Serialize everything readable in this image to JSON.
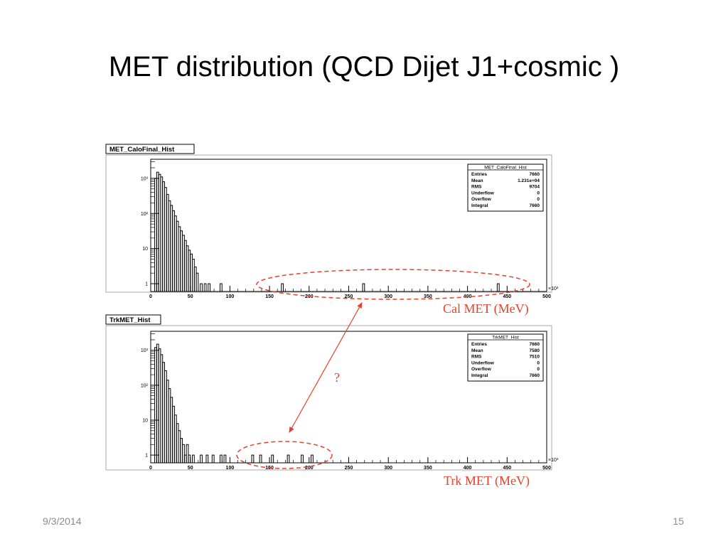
{
  "slide": {
    "title": "MET distribution (QCD Dijet J1+cosmic )",
    "date": "9/3/2014",
    "page_number": "15"
  },
  "annotations": {
    "question_mark": "?",
    "colors": {
      "annotation": "#e8402a",
      "hist": "#000000",
      "frame": "#000000"
    }
  },
  "chart_data": [
    {
      "type": "bar",
      "name_tab": "MET_CaloFinal_Hist",
      "xlabel": "Cal MET (MeV)",
      "x_exponent": "×10³",
      "log_y": true,
      "xlim": [
        0,
        500
      ],
      "ylim": [
        0.6,
        3500
      ],
      "x_ticks": [
        "0",
        "50",
        "100",
        "150",
        "200",
        "250",
        "300",
        "350",
        "400",
        "450",
        "500"
      ],
      "y_ticks": [
        {
          "value": 1,
          "label": "1"
        },
        {
          "value": 10,
          "label": "10"
        },
        {
          "value": 100,
          "label": "10²"
        },
        {
          "value": 1000,
          "label": "10³"
        }
      ],
      "bin_width": 2.5,
      "bins": [
        {
          "x": 5,
          "y": 1000
        },
        {
          "x": 7.5,
          "y": 1500
        },
        {
          "x": 10,
          "y": 1300
        },
        {
          "x": 12.5,
          "y": 1100
        },
        {
          "x": 15,
          "y": 800
        },
        {
          "x": 17.5,
          "y": 550
        },
        {
          "x": 20,
          "y": 350
        },
        {
          "x": 22.5,
          "y": 230
        },
        {
          "x": 25,
          "y": 170
        },
        {
          "x": 27.5,
          "y": 120
        },
        {
          "x": 30,
          "y": 85
        },
        {
          "x": 32.5,
          "y": 60
        },
        {
          "x": 35,
          "y": 42
        },
        {
          "x": 37.5,
          "y": 32
        },
        {
          "x": 40,
          "y": 24
        },
        {
          "x": 42.5,
          "y": 17
        },
        {
          "x": 45,
          "y": 12
        },
        {
          "x": 47.5,
          "y": 9
        },
        {
          "x": 50,
          "y": 7
        },
        {
          "x": 52.5,
          "y": 5
        },
        {
          "x": 55,
          "y": 3
        },
        {
          "x": 57.5,
          "y": 2
        },
        {
          "x": 62.5,
          "y": 1
        },
        {
          "x": 67.5,
          "y": 1
        },
        {
          "x": 72.5,
          "y": 1
        },
        {
          "x": 87.5,
          "y": 1
        },
        {
          "x": 165,
          "y": 1
        },
        {
          "x": 267.5,
          "y": 1
        },
        {
          "x": 437.5,
          "y": 1
        }
      ],
      "stats": {
        "title": "MET_CaloFinal_Hist",
        "rows": [
          {
            "label": "Entries",
            "value": "7660"
          },
          {
            "label": "Mean",
            "value": "1.231e+04"
          },
          {
            "label": "RMS",
            "value": "9704"
          },
          {
            "label": "Underflow",
            "value": "0"
          },
          {
            "label": "Overflow",
            "value": "0"
          },
          {
            "label": "Integral",
            "value": "7660"
          }
        ]
      }
    },
    {
      "type": "bar",
      "name_tab": "TrkMET_Hist",
      "xlabel": "Trk MET (MeV)",
      "x_exponent": "×10³",
      "log_y": true,
      "xlim": [
        0,
        500
      ],
      "ylim": [
        0.6,
        3500
      ],
      "x_ticks": [
        "0",
        "50",
        "100",
        "150",
        "200",
        "250",
        "300",
        "350",
        "400",
        "450",
        "500"
      ],
      "y_ticks": [
        {
          "value": 1,
          "label": "1"
        },
        {
          "value": 10,
          "label": "10"
        },
        {
          "value": 100,
          "label": "10²"
        },
        {
          "value": 1000,
          "label": "10³"
        }
      ],
      "bin_width": 2.5,
      "bins": [
        {
          "x": 5,
          "y": 1200
        },
        {
          "x": 7.5,
          "y": 1500
        },
        {
          "x": 10,
          "y": 1100
        },
        {
          "x": 12.5,
          "y": 750
        },
        {
          "x": 15,
          "y": 450
        },
        {
          "x": 17.5,
          "y": 260
        },
        {
          "x": 20,
          "y": 140
        },
        {
          "x": 22.5,
          "y": 80
        },
        {
          "x": 25,
          "y": 45
        },
        {
          "x": 27.5,
          "y": 25
        },
        {
          "x": 30,
          "y": 14
        },
        {
          "x": 32.5,
          "y": 8
        },
        {
          "x": 35,
          "y": 5
        },
        {
          "x": 37.5,
          "y": 3
        },
        {
          "x": 40,
          "y": 2
        },
        {
          "x": 42.5,
          "y": 1
        },
        {
          "x": 45,
          "y": 2
        },
        {
          "x": 47.5,
          "y": 1
        },
        {
          "x": 52.5,
          "y": 1
        },
        {
          "x": 62.5,
          "y": 1
        },
        {
          "x": 70,
          "y": 1
        },
        {
          "x": 77.5,
          "y": 1
        },
        {
          "x": 87.5,
          "y": 1
        },
        {
          "x": 92.5,
          "y": 1
        },
        {
          "x": 127.5,
          "y": 1
        },
        {
          "x": 137.5,
          "y": 1
        },
        {
          "x": 152.5,
          "y": 1
        },
        {
          "x": 172.5,
          "y": 1
        },
        {
          "x": 190,
          "y": 1
        },
        {
          "x": 202.5,
          "y": 1
        }
      ],
      "stats": {
        "title": "TrkMET_Hist",
        "rows": [
          {
            "label": "Entries",
            "value": "7660"
          },
          {
            "label": "Mean",
            "value": "7580"
          },
          {
            "label": "RMS",
            "value": "7510"
          },
          {
            "label": "Underflow",
            "value": "0"
          },
          {
            "label": "Overflow",
            "value": "0"
          },
          {
            "label": "Integral",
            "value": "7660"
          }
        ]
      }
    }
  ]
}
